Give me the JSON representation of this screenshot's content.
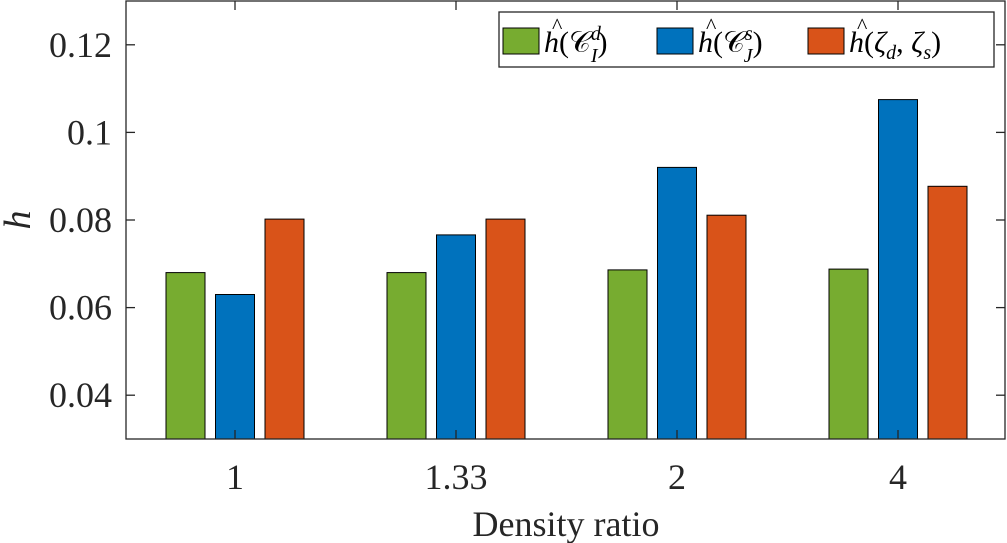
{
  "chart_data": {
    "type": "bar",
    "title": "",
    "xlabel": "Density ratio",
    "ylabel": "h",
    "categories": [
      "1",
      "1.33",
      "2",
      "4"
    ],
    "ylim": [
      0.03,
      0.13
    ],
    "yticks": [
      0.04,
      0.06,
      0.08,
      0.1,
      0.12
    ],
    "ytick_labels": [
      "0.04",
      "0.06",
      "0.08",
      "0.1",
      "0.12"
    ],
    "legend_position": "top-right",
    "series": [
      {
        "name": "ĥ(𝒞_I^d)",
        "color": "#77AC30",
        "values": [
          0.068,
          0.068,
          0.0686,
          0.0688
        ]
      },
      {
        "name": "ĥ(𝒞_J^s)",
        "color": "#0072BD",
        "values": [
          0.063,
          0.0766,
          0.092,
          0.1075
        ]
      },
      {
        "name": "ĥ(ζ_d, ζ_s)",
        "color": "#D95319",
        "values": [
          0.0802,
          0.0802,
          0.0811,
          0.0877
        ]
      }
    ]
  }
}
